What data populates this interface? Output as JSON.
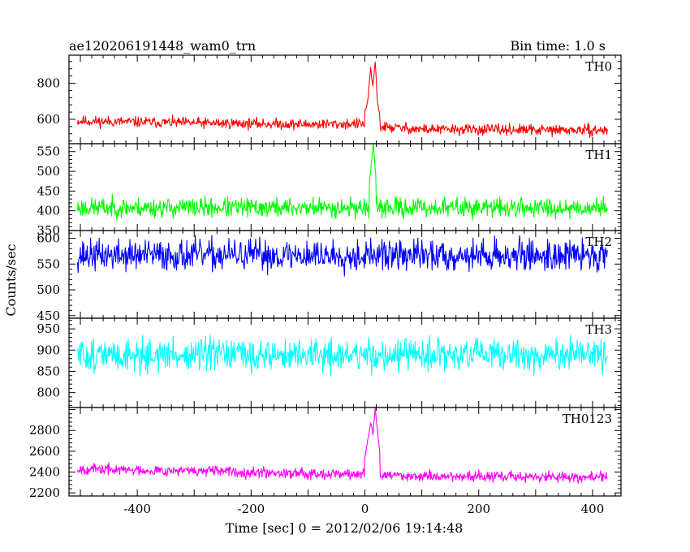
{
  "chart_data": {
    "type": "line",
    "title_left": "ae120206191448_wam0_trn",
    "title_right": "Bin time: 1.0 s",
    "xlabel": "Time [sec] 0 = 2012/02/06 19:14:48",
    "ylabel": "Counts/sec",
    "xlim": [
      -520,
      450
    ],
    "x_ticks": [
      -400,
      -200,
      0,
      200,
      400
    ],
    "x_range": [
      -505,
      426
    ],
    "panels": [
      {
        "name": "TH0",
        "color": "#ff0000",
        "ylim": [
          465,
          955
        ],
        "y_ticks": [
          600,
          800
        ],
        "seed": 11,
        "profile": [
          [
            -505,
            590
          ],
          [
            -300,
            580
          ],
          [
            -100,
            572
          ],
          [
            -10,
            575
          ],
          [
            20,
            560
          ],
          [
            100,
            545
          ],
          [
            426,
            538
          ]
        ],
        "noise": 32,
        "burst": [
          [
            0,
            640
          ],
          [
            5,
            700
          ],
          [
            10,
            880
          ],
          [
            14,
            780
          ],
          [
            18,
            920
          ],
          [
            22,
            700
          ],
          [
            26,
            620
          ]
        ]
      },
      {
        "name": "TH1",
        "color": "#00ff00",
        "ylim": [
          350,
          570
        ],
        "y_ticks": [
          350,
          400,
          450,
          500,
          550
        ],
        "seed": 23,
        "profile": [
          [
            -505,
            408
          ],
          [
            426,
            408
          ]
        ],
        "noise": 27,
        "burst": [
          [
            8,
            470
          ],
          [
            12,
            530
          ],
          [
            15,
            575
          ],
          [
            19,
            480
          ]
        ]
      },
      {
        "name": "TH2",
        "color": "#0000ff",
        "ylim": [
          445,
          615
        ],
        "y_ticks": [
          450,
          500,
          550,
          600
        ],
        "seed": 37,
        "profile": [
          [
            -505,
            567
          ],
          [
            426,
            567
          ]
        ],
        "noise": 33,
        "burst": []
      },
      {
        "name": "TH3",
        "color": "#00ffff",
        "ylim": [
          765,
          975
        ],
        "y_ticks": [
          800,
          850,
          900,
          950
        ],
        "seed": 51,
        "profile": [
          [
            -505,
            888
          ],
          [
            426,
            888
          ]
        ],
        "noise": 42,
        "burst": []
      },
      {
        "name": "TH0123",
        "color": "#ff00ff",
        "ylim": [
          2170,
          3020
        ],
        "y_ticks": [
          2200,
          2400,
          2600,
          2800
        ],
        "seed": 67,
        "profile": [
          [
            -505,
            2430
          ],
          [
            -100,
            2390
          ],
          [
            100,
            2360
          ],
          [
            426,
            2350
          ]
        ],
        "noise": 55,
        "burst": [
          [
            0,
            2550
          ],
          [
            5,
            2700
          ],
          [
            10,
            2880
          ],
          [
            14,
            2760
          ],
          [
            18,
            3000
          ],
          [
            22,
            2800
          ],
          [
            26,
            2600
          ]
        ]
      }
    ]
  }
}
